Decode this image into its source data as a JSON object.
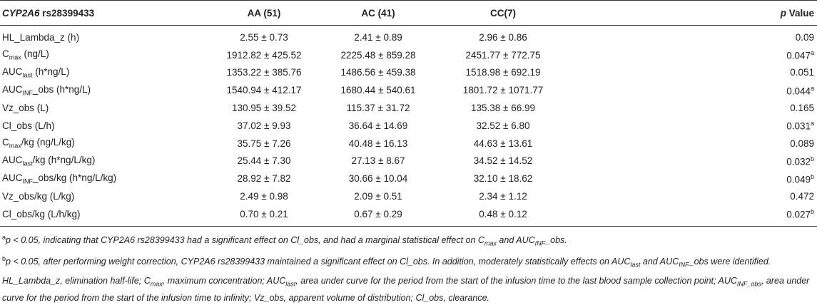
{
  "table": {
    "header": [
      [
        {
          "i": "CYP2A6"
        },
        {
          "n": " rs28399433"
        }
      ],
      [
        {
          "n": "AA (51)"
        }
      ],
      [
        {
          "n": "AC (41)"
        }
      ],
      [
        {
          "n": "CC(7)"
        }
      ],
      [
        {
          "i": "p"
        },
        {
          "n": " Value"
        }
      ]
    ],
    "rows": [
      [
        [
          {
            "n": "HL_Lambda_z (h)"
          }
        ],
        [
          {
            "n": "2.55 ± 0.73"
          }
        ],
        [
          {
            "n": "2.41 ± 0.89"
          }
        ],
        [
          {
            "n": "2.96 ± 0.86"
          }
        ],
        [
          {
            "n": "0.09"
          }
        ]
      ],
      [
        [
          {
            "n": "C"
          },
          {
            "sub": "max"
          },
          {
            "n": " (ng/L)"
          }
        ],
        [
          {
            "n": "1912.82 ± 425.52"
          }
        ],
        [
          {
            "n": "2225.48 ± 859.28"
          }
        ],
        [
          {
            "n": "2451.77 ± 772.75"
          }
        ],
        [
          {
            "n": "0.047"
          },
          {
            "sup": "a"
          }
        ]
      ],
      [
        [
          {
            "n": "AUC"
          },
          {
            "sub": "last"
          },
          {
            "n": " (h*ng/L)"
          }
        ],
        [
          {
            "n": "1353.22 ± 385.76"
          }
        ],
        [
          {
            "n": "1486.56 ± 459.38"
          }
        ],
        [
          {
            "n": "1518.98 ± 692.19"
          }
        ],
        [
          {
            "n": "0.051"
          }
        ]
      ],
      [
        [
          {
            "n": "AUC"
          },
          {
            "sub": "INF"
          },
          {
            "n": "_obs (h*ng/L)"
          }
        ],
        [
          {
            "n": "1540.94 ± 412.17"
          }
        ],
        [
          {
            "n": "1680.44 ± 540.61"
          }
        ],
        [
          {
            "n": "1801.72 ± 1071.77"
          }
        ],
        [
          {
            "n": "0.044"
          },
          {
            "sup": "a"
          }
        ]
      ],
      [
        [
          {
            "n": "Vz_obs (L)"
          }
        ],
        [
          {
            "n": "130.95 ± 39.52"
          }
        ],
        [
          {
            "n": "115.37 ± 31.72"
          }
        ],
        [
          {
            "n": "135.38 ± 66.99"
          }
        ],
        [
          {
            "n": "0.165"
          }
        ]
      ],
      [
        [
          {
            "n": "Cl_obs (L/h)"
          }
        ],
        [
          {
            "n": "37.02 ± 9.93"
          }
        ],
        [
          {
            "n": "36.64 ± 14.69"
          }
        ],
        [
          {
            "n": "32.52 ± 6.80"
          }
        ],
        [
          {
            "n": "0.031"
          },
          {
            "sup": "a"
          }
        ]
      ],
      [
        [
          {
            "n": "C"
          },
          {
            "sub": "max"
          },
          {
            "n": "/kg (ng/L/kg)"
          }
        ],
        [
          {
            "n": "35.75 ± 7.26"
          }
        ],
        [
          {
            "n": "40.48 ± 16.13"
          }
        ],
        [
          {
            "n": "44.63 ± 13.61"
          }
        ],
        [
          {
            "n": "0.089"
          }
        ]
      ],
      [
        [
          {
            "n": "AUC"
          },
          {
            "sub": "last"
          },
          {
            "n": "/kg (h*ng/L/kg)"
          }
        ],
        [
          {
            "n": "25.44 ± 7.30"
          }
        ],
        [
          {
            "n": "27.13 ± 8.67"
          }
        ],
        [
          {
            "n": "34.52 ± 14.52"
          }
        ],
        [
          {
            "n": "0.032"
          },
          {
            "sup": "b"
          }
        ]
      ],
      [
        [
          {
            "n": "AUC"
          },
          {
            "sub": "INF"
          },
          {
            "n": "_obs/kg (h*ng/L/kg)"
          }
        ],
        [
          {
            "n": "28.92 ± 7.82"
          }
        ],
        [
          {
            "n": "30.66 ± 10.04"
          }
        ],
        [
          {
            "n": "32.10 ± 18.62"
          }
        ],
        [
          {
            "n": "0.049"
          },
          {
            "sup": "b"
          }
        ]
      ],
      [
        [
          {
            "n": "Vz_obs/kg (L/kg)"
          }
        ],
        [
          {
            "n": "2.49 ± 0.98"
          }
        ],
        [
          {
            "n": "2.09 ± 0.51"
          }
        ],
        [
          {
            "n": "2.34 ± 1.12"
          }
        ],
        [
          {
            "n": "0.472"
          }
        ]
      ],
      [
        [
          {
            "n": "Cl_obs/kg (L/h/kg)"
          }
        ],
        [
          {
            "n": "0.70 ± 0.21"
          }
        ],
        [
          {
            "n": "0.67 ± 0.29"
          }
        ],
        [
          {
            "n": "0.48 ± 0.12"
          }
        ],
        [
          {
            "n": "0.027"
          },
          {
            "sup": "b"
          }
        ]
      ]
    ],
    "notes": [
      [
        {
          "sup": "a"
        },
        {
          "n": "p < 0.05, indicating that CYP2A6 rs28399433 had a significant effect on Cl_obs, and had a marginal statistical effect on C"
        },
        {
          "sub": "max"
        },
        {
          "n": " and AUC"
        },
        {
          "sub": "INF"
        },
        {
          "n": "_obs."
        }
      ],
      [
        {
          "sup": "b"
        },
        {
          "n": "p < 0.05, after performing weight correction, CYP2A6 rs28399433 maintained a significant effect on Cl_obs. In addition, moderately statistically effects on AUC"
        },
        {
          "sub": "last"
        },
        {
          "n": " and AUC"
        },
        {
          "sub": "INF"
        },
        {
          "n": "_obs were identified."
        }
      ],
      [
        {
          "n": "HL_Lambda_z, elimination half-life; C"
        },
        {
          "sub": "max"
        },
        {
          "n": ", maximum concentration; AUC"
        },
        {
          "sub": "last"
        },
        {
          "n": ", area under curve for the period from the start of the infusion time to the last blood sample collection point; AUC"
        },
        {
          "sub": "INF_obs"
        },
        {
          "n": ", area under curve for the period from the start of the infusion time to infinity; Vz_obs, apparent volume of distribution; Cl_obs, clearance."
        }
      ]
    ]
  }
}
